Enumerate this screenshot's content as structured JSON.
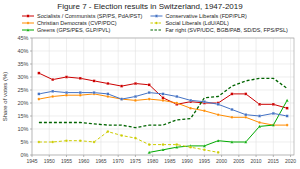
{
  "chart_data": {
    "type": "line",
    "title": "Figure 7 - Election results in Switzerland, 1947-2019",
    "ylabel": "Share of votes (%)",
    "x": [
      1947,
      1951,
      1955,
      1959,
      1963,
      1967,
      1971,
      1975,
      1979,
      1983,
      1987,
      1991,
      1995,
      1999,
      2003,
      2007,
      2011,
      2015,
      2019
    ],
    "xlim": [
      1945,
      2021
    ],
    "xticks": [
      1945,
      1950,
      1955,
      1960,
      1965,
      1970,
      1975,
      1980,
      1985,
      1990,
      1995,
      2000,
      2005,
      2010,
      2015,
      2020
    ],
    "ylim": [
      0,
      45
    ],
    "yticks": [
      {
        "value": 0,
        "label": "0%"
      },
      {
        "value": 5,
        "label": "5%"
      },
      {
        "value": 10,
        "label": "10%"
      },
      {
        "value": 15,
        "label": "15%"
      },
      {
        "value": 20,
        "label": "20%"
      },
      {
        "value": 25,
        "label": "25%"
      },
      {
        "value": 30,
        "label": "30%"
      },
      {
        "value": 35,
        "label": "35%"
      },
      {
        "value": 40,
        "label": "40%"
      },
      {
        "value": 45,
        "label": "45%"
      }
    ],
    "grid": true,
    "legend": "upper left",
    "series": [
      {
        "name": "Socialists / Communists (SP/PS, PdA/PST)",
        "color": "#cc0000",
        "marker": "square",
        "line_style": "solid",
        "values": [
          31.5,
          29.0,
          30.0,
          29.5,
          28.5,
          27.5,
          26.5,
          27.5,
          27.0,
          22.0,
          19.5,
          20.5,
          20.0,
          20.0,
          23.5,
          23.5,
          19.5,
          19.5,
          18.0
        ]
      },
      {
        "name": "Christian Democrats (CVP/PDC)",
        "color": "#ff8c00",
        "marker": "circle",
        "line_style": "solid",
        "values": [
          21.5,
          22.5,
          23.0,
          23.0,
          23.5,
          22.5,
          21.5,
          21.0,
          21.5,
          21.0,
          20.0,
          18.0,
          17.0,
          15.5,
          14.5,
          14.5,
          12.5,
          11.5,
          11.5
        ]
      },
      {
        "name": "Greens (GPS/PES, GLP/PVL)",
        "color": "#00aa00",
        "marker": "triangle",
        "line_style": "solid",
        "values": [
          null,
          null,
          null,
          null,
          null,
          null,
          null,
          null,
          1.0,
          2.0,
          3.0,
          3.5,
          3.5,
          5.5,
          5.0,
          5.0,
          11.0,
          11.5,
          21.0
        ]
      },
      {
        "name": "Conservative Liberals (FDP/PLR)",
        "color": "#4472c4",
        "marker": "square",
        "line_style": "solid",
        "values": [
          23.5,
          24.5,
          24.0,
          24.0,
          24.0,
          23.5,
          21.5,
          22.5,
          24.0,
          23.5,
          22.5,
          21.0,
          20.5,
          19.5,
          17.5,
          15.5,
          15.0,
          16.0,
          15.0
        ]
      },
      {
        "name": "Social Liberals (LdU/ADL)",
        "color": "#cccc00",
        "marker": "circle",
        "line_style": "dashed",
        "values": [
          5.0,
          5.0,
          5.5,
          5.5,
          5.0,
          9.0,
          7.5,
          6.5,
          4.0,
          4.0,
          4.0,
          3.0,
          2.0,
          1.0,
          null,
          null,
          null,
          null,
          null
        ]
      },
      {
        "name": "Far right (SVP/UDC, BGB/PAB, SD/DS, FPS/PSL)",
        "color": "#006400",
        "marker": "none",
        "line_style": "dashed",
        "values": [
          12.5,
          12.5,
          12.5,
          12.5,
          12.0,
          11.5,
          11.5,
          10.5,
          11.5,
          11.5,
          13.5,
          14.0,
          22.0,
          22.5,
          26.5,
          28.5,
          29.5,
          29.5,
          25.6
        ]
      }
    ]
  }
}
